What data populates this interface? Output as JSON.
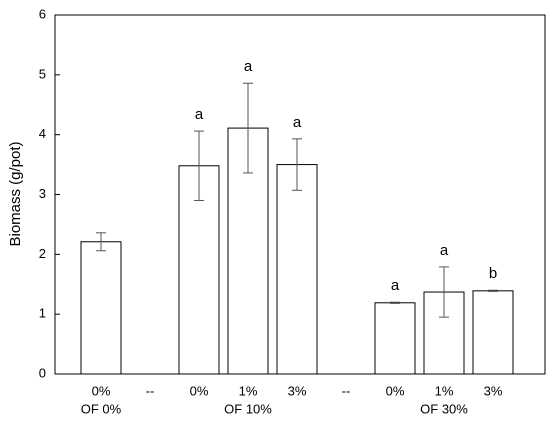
{
  "chart_data": {
    "type": "bar",
    "y_label": "Biomass (g/pot)",
    "categories": [
      "0%",
      "--",
      "0%",
      "1%",
      "3%",
      "--",
      "0%",
      "1%",
      "3%"
    ],
    "values": [
      2.21,
      null,
      3.48,
      4.11,
      3.5,
      null,
      1.19,
      1.37,
      1.39
    ],
    "errors": [
      0.15,
      null,
      0.58,
      0.75,
      0.43,
      null,
      0.01,
      0.42,
      0.01
    ],
    "value_labels": [
      null,
      null,
      "a",
      "a",
      "a",
      null,
      "a",
      "a",
      "b"
    ],
    "groups": [
      {
        "label": "OF 0%",
        "start": 0,
        "end": 0
      },
      {
        "label": "OF 10%",
        "start": 2,
        "end": 4
      },
      {
        "label": "OF 30%",
        "start": 6,
        "end": 8
      }
    ],
    "color": "#ffffff",
    "ylim": [
      0,
      6
    ],
    "yticks": [
      0,
      1,
      2,
      3,
      4,
      5,
      6
    ]
  }
}
